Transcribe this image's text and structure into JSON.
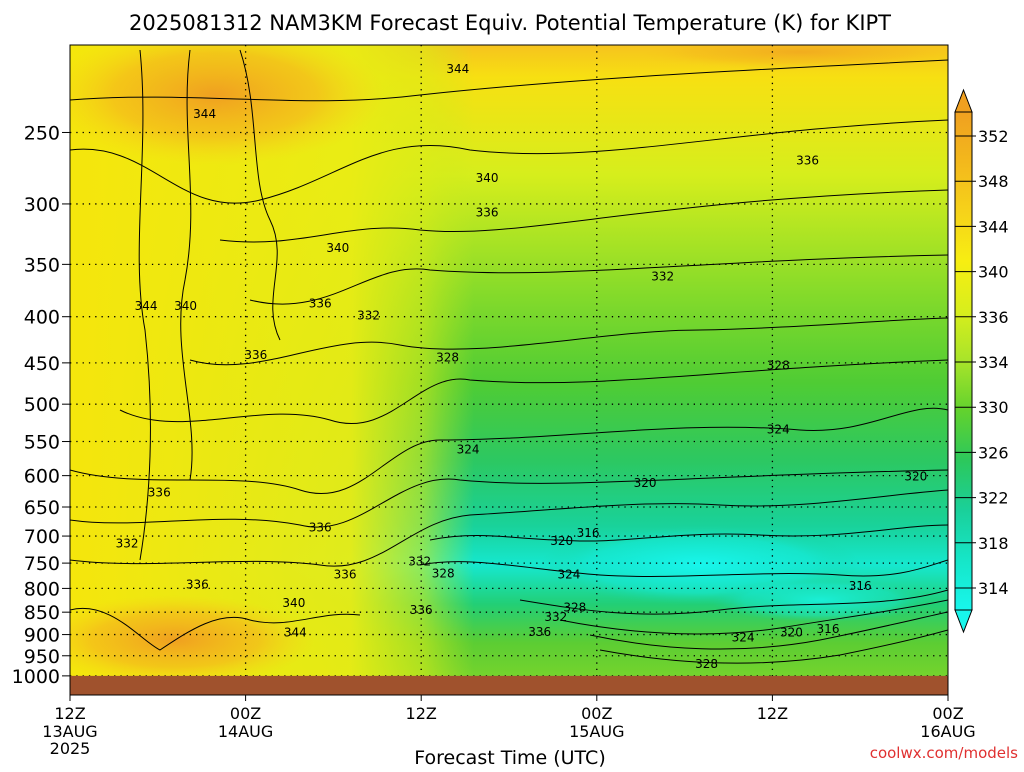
{
  "chart_data": {
    "type": "heatmap",
    "title": "2025081312 NAM3KM Forecast Equiv. Potential Temperature (K) for KIPT",
    "xlabel": "Forecast Time (UTC)",
    "ylabel": "",
    "credit": "coolwx.com/models",
    "y_scale": "log-pressure",
    "ylim": [
      1050,
      200
    ],
    "y_ticks": [
      250,
      300,
      350,
      400,
      450,
      500,
      550,
      600,
      650,
      700,
      750,
      800,
      850,
      900,
      950,
      1000
    ],
    "x_ticks": [
      {
        "label": "12Z",
        "sub": "13AUG",
        "sub2": "2025",
        "hours": 0
      },
      {
        "label": "00Z",
        "sub": "14AUG",
        "sub2": "",
        "hours": 12
      },
      {
        "label": "12Z",
        "sub": "",
        "sub2": "",
        "hours": 24
      },
      {
        "label": "00Z",
        "sub": "15AUG",
        "sub2": "",
        "hours": 36
      },
      {
        "label": "12Z",
        "sub": "",
        "sub2": "",
        "hours": 48
      },
      {
        "label": "00Z",
        "sub": "16AUG",
        "sub2": "",
        "hours": 60
      }
    ],
    "colorbar": {
      "levels": [
        352,
        348,
        344,
        340,
        336,
        334,
        330,
        326,
        322,
        318,
        314
      ],
      "colors": [
        "#f0a020",
        "#f6c000",
        "#f7e600",
        "#dcef1a",
        "#b4e82a",
        "#7bd82a",
        "#3ec840",
        "#22c870",
        "#1ad4a0",
        "#14e8cc",
        "#18f6ec"
      ]
    },
    "contour_labels": [
      {
        "text": "344",
        "hours": 26.5,
        "p": 212
      },
      {
        "text": "344",
        "hours": 9.2,
        "p": 238
      },
      {
        "text": "336",
        "hours": 50.4,
        "p": 268
      },
      {
        "text": "340",
        "hours": 28.5,
        "p": 280
      },
      {
        "text": "336",
        "hours": 28.5,
        "p": 306
      },
      {
        "text": "340",
        "hours": 18.3,
        "p": 335
      },
      {
        "text": "332",
        "hours": 40.5,
        "p": 360
      },
      {
        "text": "344",
        "hours": 5.2,
        "p": 388
      },
      {
        "text": "340",
        "hours": 7.9,
        "p": 388
      },
      {
        "text": "336",
        "hours": 17.1,
        "p": 386
      },
      {
        "text": "332",
        "hours": 20.4,
        "p": 398
      },
      {
        "text": "336",
        "hours": 12.7,
        "p": 440
      },
      {
        "text": "328",
        "hours": 25.8,
        "p": 443
      },
      {
        "text": "328",
        "hours": 48.4,
        "p": 452
      },
      {
        "text": "324",
        "hours": 48.4,
        "p": 532
      },
      {
        "text": "324",
        "hours": 27.2,
        "p": 560
      },
      {
        "text": "320",
        "hours": 39.3,
        "p": 610
      },
      {
        "text": "320",
        "hours": 57.8,
        "p": 600
      },
      {
        "text": "336",
        "hours": 6.1,
        "p": 625
      },
      {
        "text": "336",
        "hours": 17.1,
        "p": 683
      },
      {
        "text": "316",
        "hours": 35.4,
        "p": 693
      },
      {
        "text": "320",
        "hours": 33.6,
        "p": 707
      },
      {
        "text": "332",
        "hours": 3.9,
        "p": 712
      },
      {
        "text": "332",
        "hours": 23.9,
        "p": 745
      },
      {
        "text": "324",
        "hours": 34.1,
        "p": 770
      },
      {
        "text": "328",
        "hours": 25.5,
        "p": 768
      },
      {
        "text": "336",
        "hours": 18.8,
        "p": 770
      },
      {
        "text": "336",
        "hours": 8.7,
        "p": 790
      },
      {
        "text": "316",
        "hours": 54.0,
        "p": 793
      },
      {
        "text": "340",
        "hours": 15.3,
        "p": 828
      },
      {
        "text": "328",
        "hours": 34.5,
        "p": 838
      },
      {
        "text": "336",
        "hours": 24.0,
        "p": 843
      },
      {
        "text": "332",
        "hours": 33.2,
        "p": 858
      },
      {
        "text": "344",
        "hours": 15.4,
        "p": 893
      },
      {
        "text": "336",
        "hours": 32.1,
        "p": 892
      },
      {
        "text": "324",
        "hours": 46.0,
        "p": 905
      },
      {
        "text": "320",
        "hours": 49.3,
        "p": 893
      },
      {
        "text": "316",
        "hours": 51.8,
        "p": 885
      },
      {
        "text": "328",
        "hours": 43.5,
        "p": 968
      }
    ],
    "ground": {
      "from_p": 1000,
      "to_p": 1050,
      "color": "#a0522d"
    }
  }
}
